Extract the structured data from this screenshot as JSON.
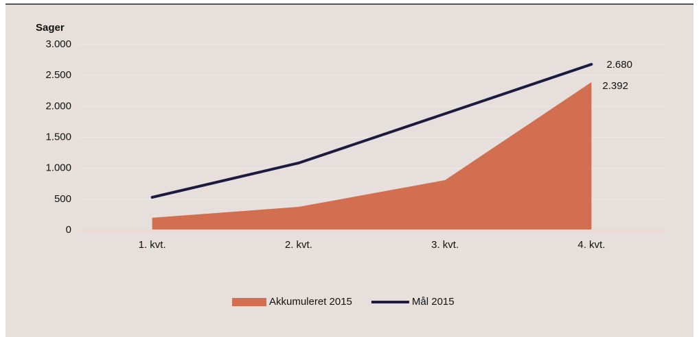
{
  "chart_data": {
    "type": "area-line",
    "y_axis_label": "Sager",
    "categories": [
      "1. kvt.",
      "2. kvt.",
      "3. kvt.",
      "4. kvt."
    ],
    "series": [
      {
        "name": "Akkumuleret 2015",
        "type": "area",
        "color": "#d26f50",
        "values": [
          200,
          376,
          808,
          2392
        ],
        "value_labels": [
          null,
          null,
          null,
          "2.392"
        ]
      },
      {
        "name": "Mål 2015",
        "type": "line",
        "color": "#1b1a3f",
        "values": [
          531,
          1085,
          1882,
          2680
        ],
        "value_labels": [
          null,
          null,
          null,
          "2.680"
        ]
      }
    ],
    "ylim": [
      0,
      3000
    ],
    "yticks": [
      0,
      500,
      {
        "value": 1000,
        "label": "1.000"
      },
      {
        "value": 1500,
        "label": "1.500"
      },
      {
        "value": 2000,
        "label": "2.000"
      },
      {
        "value": 2500,
        "label": "2.500"
      },
      {
        "value": 3000,
        "label": "3.000"
      }
    ],
    "grid": true,
    "legend": "bottom"
  }
}
